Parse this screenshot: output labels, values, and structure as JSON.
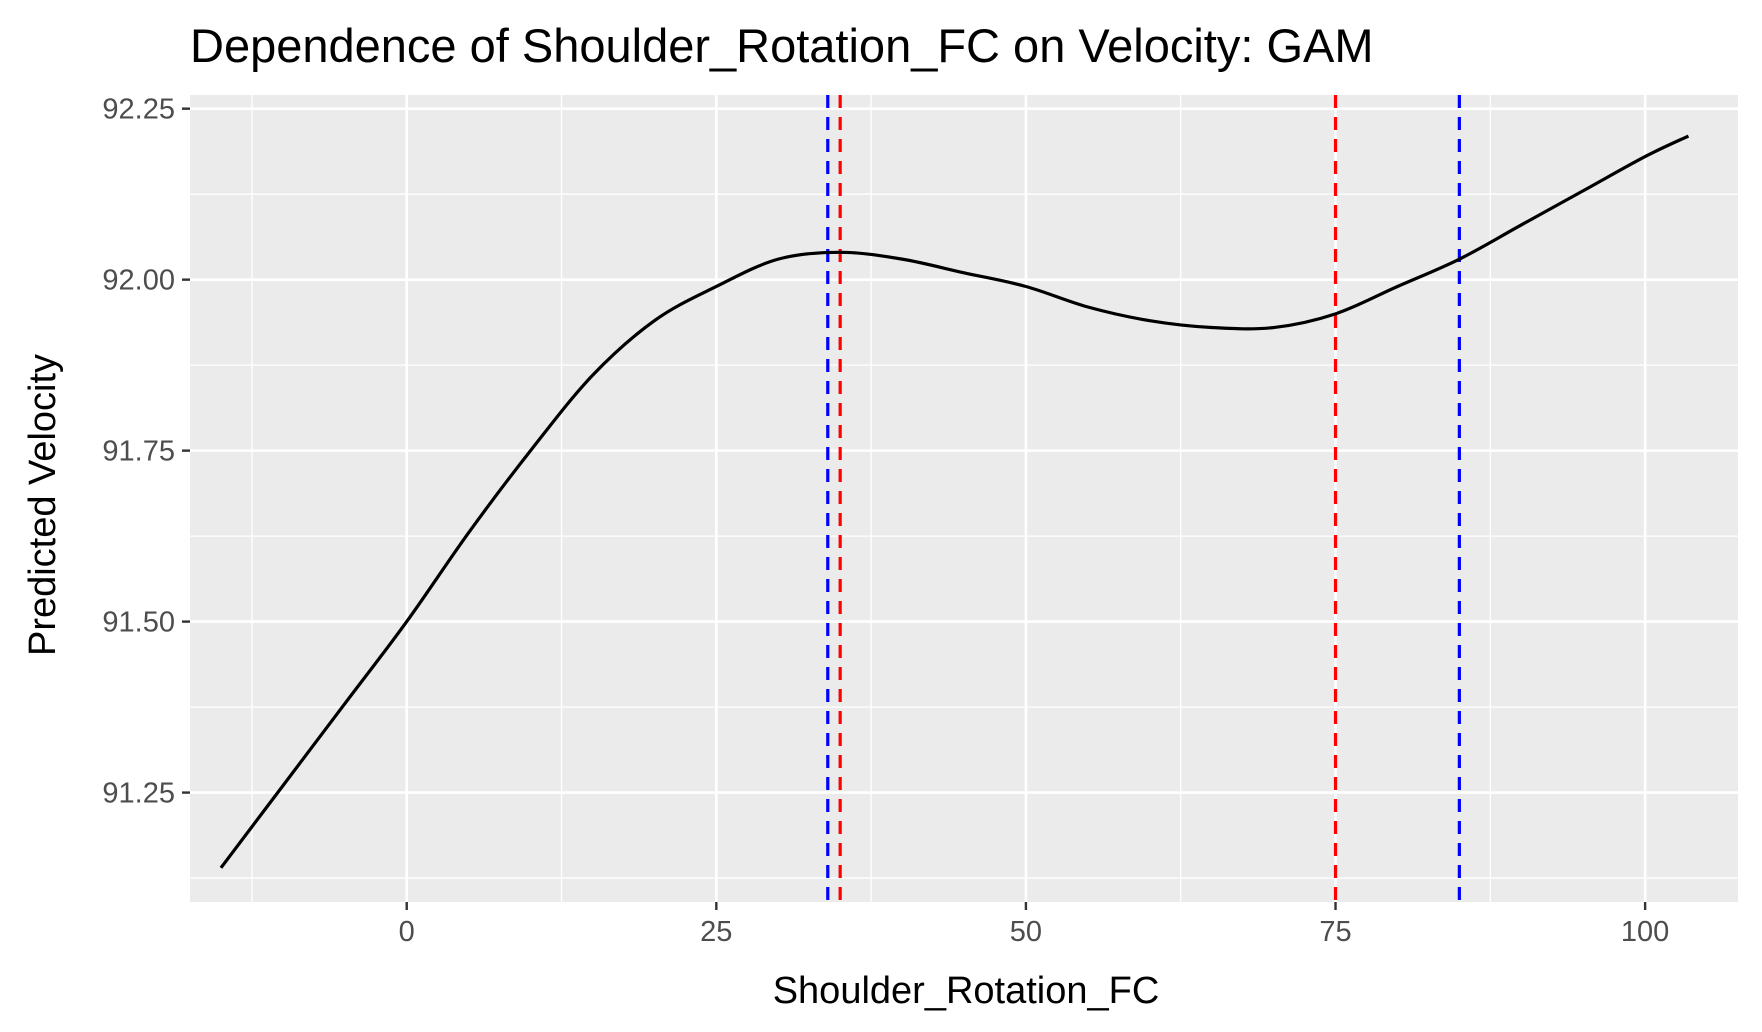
{
  "chart_data": {
    "type": "line",
    "title": "Dependence of Shoulder_Rotation_FC on Velocity: GAM",
    "xlabel": "Shoulder_Rotation_FC",
    "ylabel": "Predicted Velocity",
    "xlim": [
      -17.5,
      107.5
    ],
    "ylim": [
      91.09,
      92.27
    ],
    "x_ticks": [
      0,
      25,
      50,
      75,
      100
    ],
    "x_tick_labels": [
      "0",
      "25",
      "50",
      "75",
      "100"
    ],
    "y_ticks": [
      91.25,
      91.5,
      91.75,
      92.0,
      92.25
    ],
    "y_tick_labels": [
      "91.25",
      "91.50",
      "91.75",
      "92.00",
      "92.25"
    ],
    "grid": true,
    "series": [
      {
        "color": "#000000",
        "x": [
          -15,
          -10,
          -5,
          0,
          5,
          10,
          15,
          20,
          25,
          30,
          35,
          40,
          45,
          50,
          55,
          60,
          65,
          70,
          75,
          80,
          85,
          90,
          95,
          100,
          103.5
        ],
        "y": [
          91.14,
          91.26,
          91.38,
          91.5,
          91.63,
          91.75,
          91.86,
          91.94,
          91.99,
          92.03,
          92.04,
          92.03,
          92.01,
          91.99,
          91.96,
          91.94,
          91.93,
          91.93,
          91.95,
          91.99,
          92.03,
          92.08,
          92.13,
          92.18,
          92.21
        ]
      }
    ],
    "vlines": [
      {
        "x": 34,
        "color": "#0000ff",
        "style": "dashed"
      },
      {
        "x": 35,
        "color": "#ff0000",
        "style": "dashed"
      },
      {
        "x": 75,
        "color": "#ff0000",
        "style": "dashed"
      },
      {
        "x": 85,
        "color": "#0000ff",
        "style": "dashed"
      }
    ],
    "panel_color": "#ebebeb",
    "grid_color": "#ffffff"
  }
}
